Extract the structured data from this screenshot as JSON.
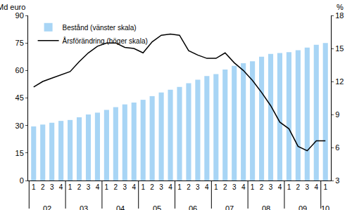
{
  "chart_data": {
    "type": "bar",
    "ylabel": "Md euro",
    "y2label": "%",
    "categories": [
      "1",
      "2",
      "3",
      "4",
      "1",
      "2",
      "3",
      "4",
      "1",
      "2",
      "3",
      "4",
      "1",
      "2",
      "3",
      "4",
      "1",
      "2",
      "3",
      "4",
      "1",
      "2",
      "3",
      "4",
      "1",
      "2",
      "3",
      "4",
      "1",
      "2",
      "3",
      "4",
      "1"
    ],
    "year_groups": [
      {
        "label": "02",
        "count": 4
      },
      {
        "label": "03",
        "count": 4
      },
      {
        "label": "04",
        "count": 4
      },
      {
        "label": "05",
        "count": 4
      },
      {
        "label": "06",
        "count": 4
      },
      {
        "label": "07",
        "count": 4
      },
      {
        "label": "08",
        "count": 4
      },
      {
        "label": "09",
        "count": 4
      },
      {
        "label": "10",
        "count": 1
      }
    ],
    "series": [
      {
        "name": "Bestånd (vänster skala)",
        "type": "bar",
        "color": "#a8d5f5",
        "values": [
          29.5,
          30.5,
          31.5,
          32.5,
          33,
          34.5,
          36,
          37,
          38.5,
          40,
          41.5,
          42.5,
          44,
          46,
          48,
          49.5,
          51,
          53,
          55,
          57,
          58,
          60.5,
          62.5,
          64,
          65,
          67.5,
          69,
          69.5,
          70,
          71,
          72.5,
          74,
          75
        ]
      },
      {
        "name": "Årsförändring (höger skala)",
        "type": "line",
        "axis": "y2",
        "color": "#000000",
        "values": [
          11.5,
          12,
          12.3,
          12.6,
          12.9,
          13.8,
          14.6,
          15.2,
          15.5,
          15.5,
          15.1,
          15,
          14.6,
          15.6,
          16.2,
          16.3,
          16.2,
          14.8,
          14.4,
          14.1,
          14.1,
          14.6,
          13.7,
          13,
          12.1,
          11,
          9.8,
          8.3,
          7.7,
          6.1,
          5.7,
          6.6,
          6.6
        ]
      }
    ],
    "ylim": [
      0,
      90
    ],
    "yticks": [
      0,
      15,
      30,
      45,
      60,
      75,
      90
    ],
    "y2lim": [
      3,
      18
    ],
    "y2ticks": [
      3,
      6,
      9,
      12,
      15,
      18
    ],
    "grid": false,
    "legend": "top-left"
  }
}
